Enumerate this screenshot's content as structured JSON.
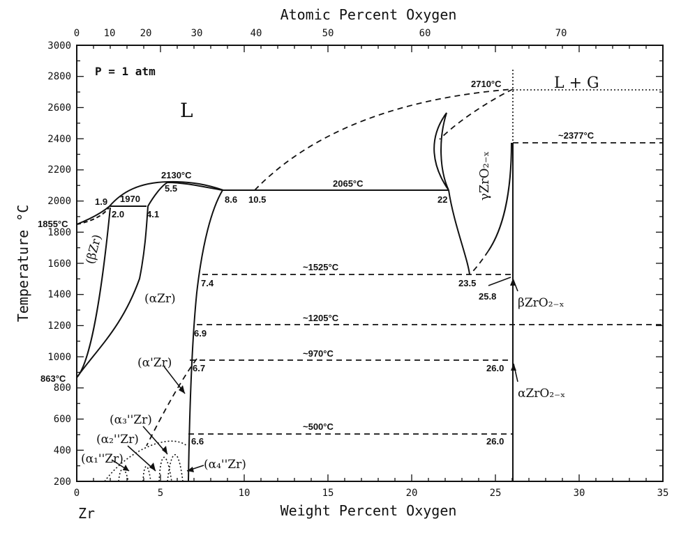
{
  "axes": {
    "top_title": "Atomic Percent Oxygen",
    "bottom_title": "Weight Percent Oxygen",
    "left_title": "Temperature °C",
    "bottom_corner": "Zr",
    "x_wt_ticks": [
      "0",
      "5",
      "10",
      "15",
      "20",
      "25",
      "30",
      "35"
    ],
    "x_at_ticks": [
      "0",
      "10",
      "20",
      "30",
      "40",
      "50",
      "60",
      "70"
    ],
    "y_ticks": [
      "200",
      "400",
      "600",
      "800",
      "1000",
      "1200",
      "1400",
      "1600",
      "1800",
      "2000",
      "2200",
      "2400",
      "2600",
      "2800",
      "3000"
    ]
  },
  "pressure": "P = 1 atm",
  "phases": {
    "liquid": "L",
    "liquid_gas": "L + G",
    "beta_zr": "(βZr)",
    "alpha_zr": "(αZr)",
    "alpha_prime_zr": "(α'Zr)",
    "alpha3_zr": "(α₃''Zr)",
    "alpha2_zr": "(α₂''Zr)",
    "alpha1_zr": "(α₁''Zr)",
    "alpha4_zr": "(α₄''Zr)",
    "gamma_zro2": "γZrO₂₋ₓ",
    "beta_zro2": "βZrO₂₋ₓ",
    "alpha_zro2": "αZrO₂₋ₓ"
  },
  "temperature_labels": {
    "t2710": "2710°C",
    "t2377": "~2377°C",
    "t2130": "2130°C",
    "t2065": "2065°C",
    "t1970": "1970",
    "t1855": "1855°C",
    "t1525": "~1525°C",
    "t1205": "~1205°C",
    "t970": "~970°C",
    "t863": "863°C",
    "t500": "~500°C"
  },
  "composition_labels": {
    "c1_9": "1.9",
    "c2_0": "2.0",
    "c4_1": "4.1",
    "c5_5": "5.5",
    "c8_6": "8.6",
    "c10_5": "10.5",
    "c22": "22",
    "c23_5": "23.5",
    "c25_8": "25.8",
    "c7_4": "7.4",
    "c6_9": "6.9",
    "c6_7": "6.7",
    "c6_6": "6.6",
    "c26_0a": "26.0",
    "c26_0b": "26.0"
  },
  "chart_data": {
    "type": "phase-diagram",
    "title": "",
    "xlabel": "Weight Percent Oxygen",
    "x2label": "Atomic Percent Oxygen",
    "ylabel": "Temperature °C",
    "xlim": [
      0,
      35
    ],
    "ylim": [
      200,
      3000
    ],
    "invariants": [
      {
        "T": 2710,
        "x": 26.0
      },
      {
        "T": 2377,
        "x": 26.0
      },
      {
        "T": 2130,
        "x": 5.5
      },
      {
        "T": 2065,
        "x": [
          10.5,
          22
        ]
      },
      {
        "T": 1970,
        "x": [
          2.0,
          4.1
        ]
      },
      {
        "T": 1855,
        "x": 0
      },
      {
        "T": 1525,
        "x": [
          7.4,
          23.5,
          25.8
        ]
      },
      {
        "T": 1205,
        "x": 6.9
      },
      {
        "T": 970,
        "x": [
          6.7,
          26.0
        ]
      },
      {
        "T": 863,
        "x": 0
      },
      {
        "T": 500,
        "x": [
          6.6,
          26.0
        ]
      }
    ]
  }
}
